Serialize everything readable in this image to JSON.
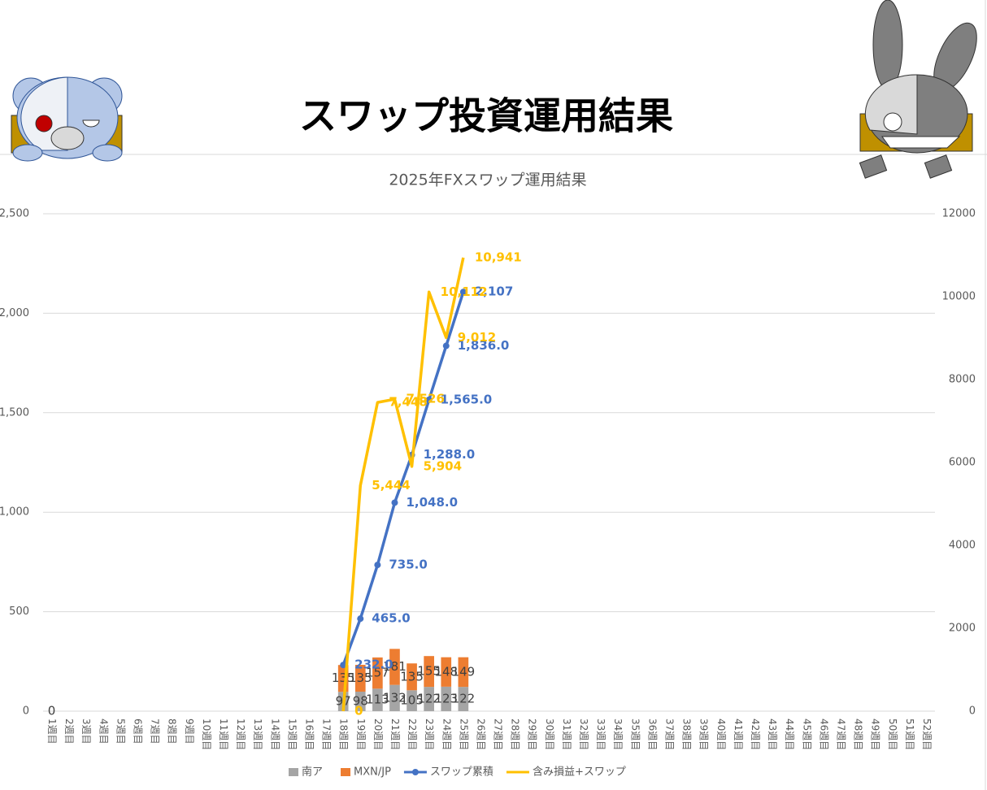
{
  "chart_data": {
    "type": "combo",
    "title": "スワップ投資運用結果",
    "subtitle": "2025年FXスワップ運用結果",
    "categories": [
      "1週目",
      "2週目",
      "3週目",
      "4週目",
      "5週目",
      "6週目",
      "7週目",
      "8週目",
      "9週目",
      "10週目",
      "11週目",
      "12週目",
      "13週目",
      "14週目",
      "15週目",
      "16週目",
      "17週目",
      "18週目",
      "19週目",
      "20週目",
      "21週目",
      "22週目",
      "23週目",
      "24週目",
      "25週目",
      "26週目",
      "27週目",
      "28週目",
      "29週目",
      "30週目",
      "31週目",
      "32週目",
      "33週目",
      "34週目",
      "35週目",
      "36週目",
      "37週目",
      "38週目",
      "39週目",
      "40週目",
      "41週目",
      "42週目",
      "43週目",
      "44週目",
      "45週目",
      "46週目",
      "47週目",
      "48週目",
      "49週目",
      "50週目",
      "51週目",
      "52週目"
    ],
    "series": [
      {
        "name": "南ア",
        "type": "bar",
        "color": "#a5a5a5",
        "values": [
          0,
          null,
          null,
          null,
          null,
          null,
          null,
          null,
          null,
          null,
          null,
          null,
          null,
          null,
          null,
          null,
          null,
          97,
          98,
          113,
          132,
          105,
          122,
          123,
          122,
          null,
          null,
          null,
          null,
          null,
          null,
          null,
          null,
          null,
          null,
          null,
          null,
          null,
          null,
          null,
          null,
          null,
          null,
          null,
          null,
          null,
          null,
          null,
          null,
          null,
          null,
          null
        ]
      },
      {
        "name": "MXN/JP",
        "type": "bar",
        "color": "#ed7d31",
        "values": [
          null,
          null,
          null,
          null,
          null,
          null,
          null,
          null,
          null,
          null,
          null,
          null,
          null,
          null,
          null,
          null,
          null,
          135,
          135,
          157,
          181,
          135,
          155,
          148,
          149,
          null,
          null,
          null,
          null,
          null,
          null,
          null,
          null,
          null,
          null,
          null,
          null,
          null,
          null,
          null,
          null,
          null,
          null,
          null,
          null,
          null,
          null,
          null,
          null,
          null,
          null,
          null
        ]
      },
      {
        "name": "スワップ累積",
        "type": "line",
        "color": "#4472c4",
        "markers": true,
        "values": [
          null,
          null,
          null,
          null,
          null,
          null,
          null,
          null,
          null,
          null,
          null,
          null,
          null,
          null,
          null,
          null,
          null,
          232,
          465,
          735,
          1048,
          1288,
          1565,
          1836,
          2107,
          null,
          null,
          null,
          null,
          null,
          null,
          null,
          null,
          null,
          null,
          null,
          null,
          null,
          null,
          null,
          null,
          null,
          null,
          null,
          null,
          null,
          null,
          null,
          null,
          null,
          null,
          null
        ],
        "value_labels": [
          null,
          null,
          null,
          null,
          null,
          null,
          null,
          null,
          null,
          null,
          null,
          null,
          null,
          null,
          null,
          null,
          null,
          "232.0",
          "465.0",
          "735.0",
          "1,048.0",
          "1,288.0",
          "1,565.0",
          "1,836.0",
          "2,107",
          null,
          null,
          null,
          null,
          null,
          null,
          null,
          null,
          null,
          null,
          null,
          null,
          null,
          null,
          null,
          null,
          null,
          null,
          null,
          null,
          null,
          null,
          null,
          null,
          null,
          null,
          null
        ]
      },
      {
        "name": "含み損益+スワップ",
        "type": "line",
        "axis": "y2",
        "color": "#ffc000",
        "markers": false,
        "values": [
          null,
          null,
          null,
          null,
          null,
          null,
          null,
          null,
          null,
          null,
          null,
          null,
          null,
          null,
          null,
          null,
          null,
          0,
          5444,
          7448,
          7526,
          5904,
          10112,
          9012,
          10941,
          null,
          null,
          null,
          null,
          null,
          null,
          null,
          null,
          null,
          null,
          null,
          null,
          null,
          null,
          null,
          null,
          null,
          null,
          null,
          null,
          null,
          null,
          null,
          null,
          null,
          null,
          null
        ],
        "value_labels": [
          null,
          null,
          null,
          null,
          null,
          null,
          null,
          null,
          null,
          null,
          null,
          null,
          null,
          null,
          null,
          null,
          null,
          "0",
          "5,444",
          "7,448",
          "7,526",
          "5,904",
          "10,112",
          "9,012",
          "10,941",
          null,
          null,
          null,
          null,
          null,
          null,
          null,
          null,
          null,
          null,
          null,
          null,
          null,
          null,
          null,
          null,
          null,
          null,
          null,
          null,
          null,
          null,
          null,
          null,
          null,
          null,
          null
        ]
      }
    ],
    "ylim": [
      0,
      2500
    ],
    "yticks": [
      0,
      {
        "value": 500,
        "label": "500"
      },
      {
        "value": 1000,
        "label": "1,000"
      },
      {
        "value": 1500,
        "label": "1,500"
      },
      {
        "value": 2000,
        "label": "2,000"
      },
      {
        "value": 2500,
        "label": "2,500"
      }
    ],
    "y2lim": [
      0,
      12000
    ],
    "y2ticks": [
      0,
      2000,
      4000,
      6000,
      8000,
      10000,
      12000
    ],
    "grid": true,
    "legend": "bottom"
  }
}
